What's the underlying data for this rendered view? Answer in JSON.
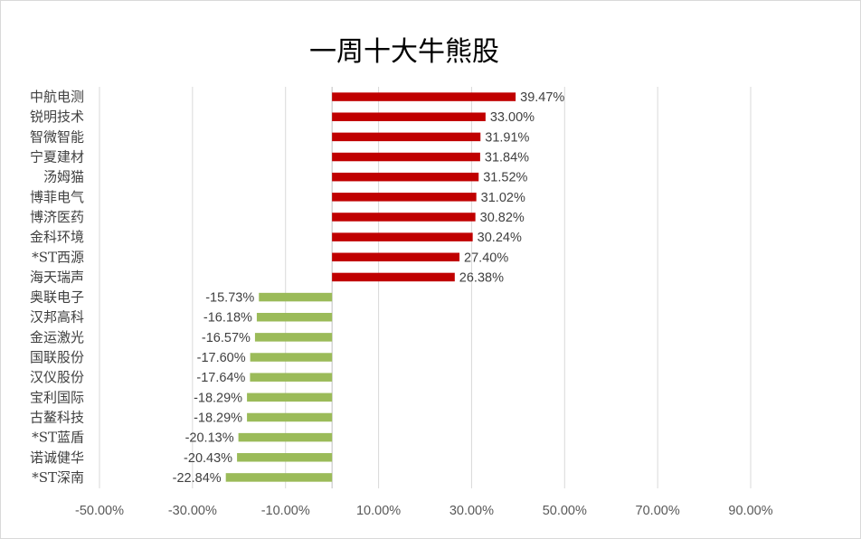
{
  "chart_data": {
    "type": "bar",
    "orientation": "horizontal",
    "title": "一周十大牛熊股",
    "categories": [
      "中航电测",
      "锐明技术",
      "智微智能",
      "宁夏建材",
      "汤姆猫",
      "博菲电气",
      "博济医药",
      "金科环境",
      "*ST西源",
      "海天瑞声",
      "奥联电子",
      "汉邦高科",
      "金运激光",
      "国联股份",
      "汉仪股份",
      "宝利国际",
      "古鳌科技",
      "*ST蓝盾",
      "诺诚健华",
      "*ST深南"
    ],
    "values": [
      39.47,
      33.0,
      31.91,
      31.84,
      31.52,
      31.02,
      30.82,
      30.24,
      27.4,
      26.38,
      -15.73,
      -16.18,
      -16.57,
      -17.6,
      -17.64,
      -18.29,
      -18.29,
      -20.13,
      -20.43,
      -22.84
    ],
    "value_labels": [
      "39.47%",
      "33.00%",
      "31.91%",
      "31.84%",
      "31.52%",
      "31.02%",
      "30.82%",
      "30.24%",
      "27.40%",
      "26.38%",
      "-15.73%",
      "-16.18%",
      "-16.57%",
      "-17.60%",
      "-17.64%",
      "-18.29%",
      "-18.29%",
      "-20.13%",
      "-20.43%",
      "-22.84%"
    ],
    "xlim": [
      -50,
      90
    ],
    "xticks": [
      -50,
      -30,
      -10,
      10,
      30,
      50,
      70,
      90
    ],
    "xtick_labels": [
      "-50.00%",
      "-30.00%",
      "-10.00%",
      "10.00%",
      "30.00%",
      "50.00%",
      "70.00%",
      "90.00%"
    ],
    "grid": true,
    "legend": "none",
    "colors": {
      "positive": "#c00000",
      "negative": "#9bbb59"
    }
  }
}
